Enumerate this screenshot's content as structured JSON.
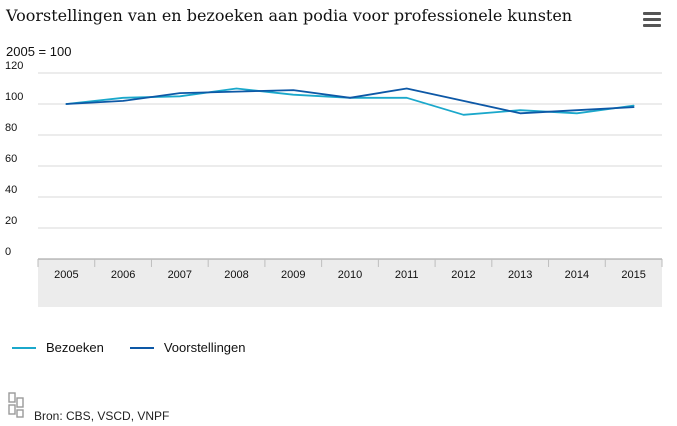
{
  "header": {
    "title": "Voorstellingen van en bezoeken aan podia voor professionele kunsten",
    "menu_icon": "hamburger-menu-icon"
  },
  "unit_label": "2005 = 100",
  "footer": {
    "source": "Bron: CBS, VSCD, VNPF",
    "logo_icon": "cbs-logo-icon"
  },
  "colors": {
    "bezoeken": "#1ba8cb",
    "voorstellingen": "#0d58a6",
    "plot_band": "#ececec",
    "grid": "#d8d8d8"
  },
  "chart_data": {
    "type": "line",
    "categories": [
      "2005",
      "2006",
      "2007",
      "2008",
      "2009",
      "2010",
      "2011",
      "2012",
      "2013",
      "2014",
      "2015"
    ],
    "series": [
      {
        "name": "Bezoeken",
        "values": [
          100,
          104,
          105,
          110,
          106,
          104,
          104,
          93,
          96,
          94,
          99
        ]
      },
      {
        "name": "Voorstellingen",
        "values": [
          100,
          102,
          107,
          108,
          109,
          104,
          110,
          102,
          94,
          96,
          98
        ]
      }
    ],
    "ylim": [
      0,
      120
    ],
    "yticks": [
      "0",
      "20",
      "40",
      "60",
      "80",
      "100",
      "120"
    ],
    "grid": true,
    "legend": "bottom-left"
  }
}
